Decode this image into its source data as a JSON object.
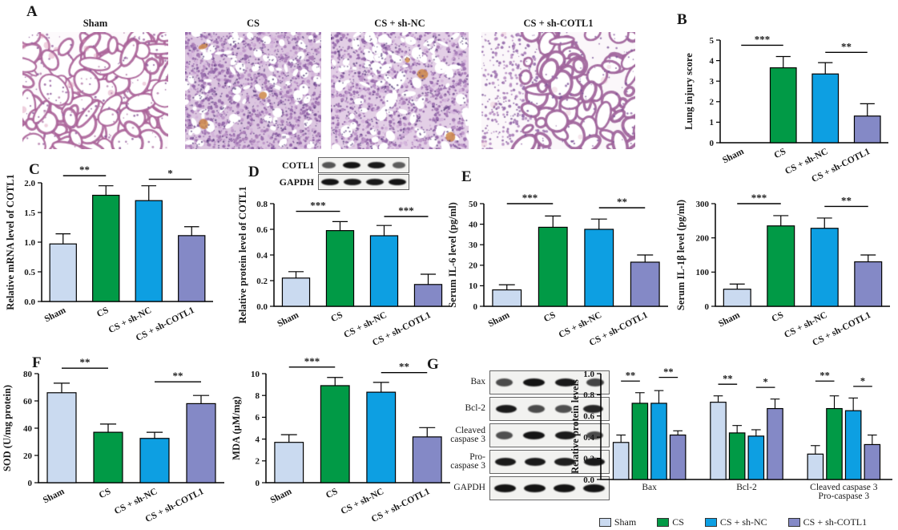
{
  "figure_label": {
    "A": "A",
    "B": "B",
    "C": "C",
    "D": "D",
    "E": "E",
    "F": "F",
    "G": "G"
  },
  "group_names": [
    "Sham",
    "CS",
    "CS + sh-NC",
    "CS + sh-COTL1"
  ],
  "group_colors": [
    "#cadaf0",
    "#019a46",
    "#0d9fe2",
    "#8489c6"
  ],
  "panelA": {
    "images": [
      {
        "label": "Sham",
        "style": "open"
      },
      {
        "label": "CS",
        "style": "dense"
      },
      {
        "label": "CS + sh-NC",
        "style": "medium"
      },
      {
        "label": "CS + sh-COTL1",
        "style": "semi"
      }
    ]
  },
  "panelD_blot": {
    "rows": [
      {
        "label": "COTL1",
        "bands": [
          0.45,
          1,
          0.95,
          0.4
        ]
      },
      {
        "label": "GAPDH",
        "bands": [
          1,
          0.95,
          0.95,
          1
        ]
      }
    ]
  },
  "panelG_blot": {
    "rows": [
      {
        "label": "Bax",
        "bands": [
          0.55,
          1,
          0.95,
          0.6
        ]
      },
      {
        "label": "Bcl-2",
        "bands": [
          0.95,
          0.55,
          0.5,
          0.85
        ]
      },
      {
        "label": "Cleaved\ncaspase 3",
        "bands": [
          0.5,
          1,
          0.95,
          0.55
        ]
      },
      {
        "label": "Pro-\ncaspase 3",
        "bands": [
          0.95,
          0.95,
          0.9,
          0.95
        ]
      },
      {
        "label": "GAPDH",
        "bands": [
          1,
          1,
          1,
          1
        ]
      }
    ]
  },
  "legend": [
    {
      "label": "Sham",
      "color": "#cadaf0"
    },
    {
      "label": "CS",
      "color": "#019a46"
    },
    {
      "label": "CS + sh-NC",
      "color": "#0d9fe2"
    },
    {
      "label": "CS + sh-COTL1",
      "color": "#8489c6"
    }
  ],
  "chart_data": [
    {
      "id": "B",
      "type": "bar",
      "title": "",
      "xlabel": "",
      "ylabel": "Lung injury score",
      "ylim": [
        0,
        5
      ],
      "yticks": [
        0,
        1,
        2,
        3,
        4,
        5
      ],
      "ytick_labels": [
        "0",
        "1",
        "2",
        "3",
        "4",
        "5"
      ],
      "categories": [
        "Sham",
        "CS",
        "CS + sh-NC",
        "CS + sh-COTL1"
      ],
      "values": [
        0,
        3.65,
        3.35,
        1.3
      ],
      "errors": [
        0,
        0.55,
        0.55,
        0.6
      ],
      "colors": [
        "#cadaf0",
        "#019a46",
        "#0d9fe2",
        "#8489c6"
      ],
      "sig": [
        {
          "pair": [
            0,
            1
          ],
          "label": "***",
          "y": 4.75
        },
        {
          "pair": [
            2,
            3
          ],
          "label": "**",
          "y": 4.4
        }
      ]
    },
    {
      "id": "C",
      "type": "bar",
      "title": "",
      "xlabel": "",
      "ylabel": "Relative mRNA level of COTL1",
      "ylim": [
        0,
        2
      ],
      "yticks": [
        0,
        0.5,
        1,
        1.5,
        2
      ],
      "ytick_labels": [
        "0.0",
        "0.5",
        "1.0",
        "1.5",
        "2.0"
      ],
      "categories": [
        "Sham",
        "CS",
        "CS + sh-NC",
        "CS + sh-COTL1"
      ],
      "values": [
        0.97,
        1.79,
        1.7,
        1.11
      ],
      "errors": [
        0.17,
        0.16,
        0.25,
        0.15
      ],
      "colors": [
        "#cadaf0",
        "#019a46",
        "#0d9fe2",
        "#8489c6"
      ],
      "sig": [
        {
          "pair": [
            0,
            1
          ],
          "label": "**",
          "y": 2.12
        },
        {
          "pair": [
            2,
            3
          ],
          "label": "*",
          "y": 2.06
        }
      ]
    },
    {
      "id": "D",
      "type": "bar",
      "title": "",
      "xlabel": "",
      "ylabel": "Relative protein level of COTL1",
      "ylim": [
        0,
        0.8
      ],
      "yticks": [
        0,
        0.2,
        0.4,
        0.6,
        0.8
      ],
      "ytick_labels": [
        "0.0",
        "0.2",
        "0.4",
        "0.6",
        "0.8"
      ],
      "categories": [
        "Sham",
        "CS",
        "CS + sh-NC",
        "CS + sh-COTL1"
      ],
      "values": [
        0.22,
        0.59,
        0.55,
        0.17
      ],
      "errors": [
        0.05,
        0.07,
        0.08,
        0.08
      ],
      "colors": [
        "#cadaf0",
        "#019a46",
        "#0d9fe2",
        "#8489c6"
      ],
      "sig": [
        {
          "pair": [
            0,
            1
          ],
          "label": "***",
          "y": 0.74
        },
        {
          "pair": [
            2,
            3
          ],
          "label": "***",
          "y": 0.7
        }
      ]
    },
    {
      "id": "E1",
      "type": "bar",
      "title": "",
      "xlabel": "",
      "ylabel": "Serum IL-6 level (pg/ml)",
      "ylim": [
        0,
        50
      ],
      "yticks": [
        0,
        10,
        20,
        30,
        40,
        50
      ],
      "ytick_labels": [
        "0",
        "10",
        "20",
        "30",
        "40",
        "50"
      ],
      "categories": [
        "Sham",
        "CS",
        "CS + sh-NC",
        "CS + sh-COTL1"
      ],
      "values": [
        8,
        38.5,
        37.5,
        21.5
      ],
      "errors": [
        2.5,
        5.5,
        5,
        3.5
      ],
      "colors": [
        "#cadaf0",
        "#019a46",
        "#0d9fe2",
        "#8489c6"
      ],
      "sig": [
        {
          "pair": [
            0,
            1
          ],
          "label": "***",
          "y": 50
        },
        {
          "pair": [
            2,
            3
          ],
          "label": "**",
          "y": 48
        }
      ]
    },
    {
      "id": "E2",
      "type": "bar",
      "title": "",
      "xlabel": "",
      "ylabel": "Serum IL-1β level (pg/ml)",
      "ylim": [
        0,
        300
      ],
      "yticks": [
        0,
        100,
        200,
        300
      ],
      "ytick_labels": [
        "0",
        "100",
        "200",
        "300"
      ],
      "categories": [
        "Sham",
        "CS",
        "CS + sh-NC",
        "CS + sh-COTL1"
      ],
      "values": [
        50,
        235,
        228,
        130
      ],
      "errors": [
        15,
        30,
        30,
        20
      ],
      "colors": [
        "#cadaf0",
        "#019a46",
        "#0d9fe2",
        "#8489c6"
      ],
      "sig": [
        {
          "pair": [
            0,
            1
          ],
          "label": "***",
          "y": 300
        },
        {
          "pair": [
            2,
            3
          ],
          "label": "**",
          "y": 292
        }
      ]
    },
    {
      "id": "F1",
      "type": "bar",
      "title": "",
      "xlabel": "",
      "ylabel": "SOD (U/mg protein)",
      "ylim": [
        0,
        80
      ],
      "yticks": [
        0,
        20,
        40,
        60,
        80
      ],
      "ytick_labels": [
        "0",
        "20",
        "40",
        "60",
        "80"
      ],
      "categories": [
        "Sham",
        "CS",
        "CS + sh-NC",
        "CS + sh-COTL1"
      ],
      "values": [
        66,
        37,
        32.5,
        58
      ],
      "errors": [
        7,
        6,
        4.5,
        6
      ],
      "colors": [
        "#cadaf0",
        "#019a46",
        "#0d9fe2",
        "#8489c6"
      ],
      "sig": [
        {
          "pair": [
            0,
            1
          ],
          "label": "**",
          "y": 84
        },
        {
          "pair": [
            2,
            3
          ],
          "label": "**",
          "y": 74
        }
      ]
    },
    {
      "id": "F2",
      "type": "bar",
      "title": "",
      "xlabel": "",
      "ylabel": "MDA (μM/mg)",
      "ylim": [
        0,
        10
      ],
      "yticks": [
        0,
        2,
        4,
        6,
        8,
        10
      ],
      "ytick_labels": [
        "0",
        "2",
        "4",
        "6",
        "8",
        "10"
      ],
      "categories": [
        "Sham",
        "CS",
        "CS + sh-NC",
        "CS + sh-COTL1"
      ],
      "values": [
        3.7,
        8.9,
        8.3,
        4.2
      ],
      "errors": [
        0.7,
        0.75,
        0.9,
        0.85
      ],
      "colors": [
        "#cadaf0",
        "#019a46",
        "#0d9fe2",
        "#8489c6"
      ],
      "sig": [
        {
          "pair": [
            0,
            1
          ],
          "label": "***",
          "y": 10.6
        },
        {
          "pair": [
            2,
            3
          ],
          "label": "**",
          "y": 10.1
        }
      ]
    },
    {
      "id": "G",
      "type": "grouped_bar",
      "title": "",
      "xlabel": "",
      "ylabel": "Relative protein levels",
      "ylim": [
        0,
        1
      ],
      "yticks": [
        0,
        0.2,
        0.4,
        0.6,
        0.8,
        1
      ],
      "ytick_labels": [
        "0.0",
        "0.2",
        "0.4",
        "0.6",
        "0.8",
        "1.0"
      ],
      "categories": [
        [
          "Bax"
        ],
        [
          "Bcl-2"
        ],
        [
          "Cleaved caspase 3",
          "Pro-caspase 3"
        ]
      ],
      "series": [
        {
          "name": "Sham",
          "color": "#cadaf0",
          "values": [
            0.35,
            0.73,
            0.24
          ],
          "errors": [
            0.07,
            0.06,
            0.08
          ]
        },
        {
          "name": "CS",
          "color": "#019a46",
          "values": [
            0.72,
            0.44,
            0.67
          ],
          "errors": [
            0.1,
            0.07,
            0.12
          ]
        },
        {
          "name": "CS + sh-NC",
          "color": "#0d9fe2",
          "values": [
            0.72,
            0.41,
            0.65
          ],
          "errors": [
            0.12,
            0.06,
            0.12
          ]
        },
        {
          "name": "CS + sh-COTL1",
          "color": "#8489c6",
          "values": [
            0.42,
            0.67,
            0.33
          ],
          "errors": [
            0.04,
            0.09,
            0.09
          ]
        }
      ],
      "legend_position": "bottom",
      "sig": [
        {
          "group": 0,
          "pair": [
            0,
            1
          ],
          "label": "**",
          "y": 0.93
        },
        {
          "group": 0,
          "pair": [
            2,
            3
          ],
          "label": "**",
          "y": 0.965
        },
        {
          "group": 1,
          "pair": [
            0,
            1
          ],
          "label": "**",
          "y": 0.9
        },
        {
          "group": 1,
          "pair": [
            2,
            3
          ],
          "label": "*",
          "y": 0.87
        },
        {
          "group": 2,
          "pair": [
            0,
            1
          ],
          "label": "**",
          "y": 0.93
        },
        {
          "group": 2,
          "pair": [
            2,
            3
          ],
          "label": "*",
          "y": 0.88
        }
      ]
    }
  ]
}
